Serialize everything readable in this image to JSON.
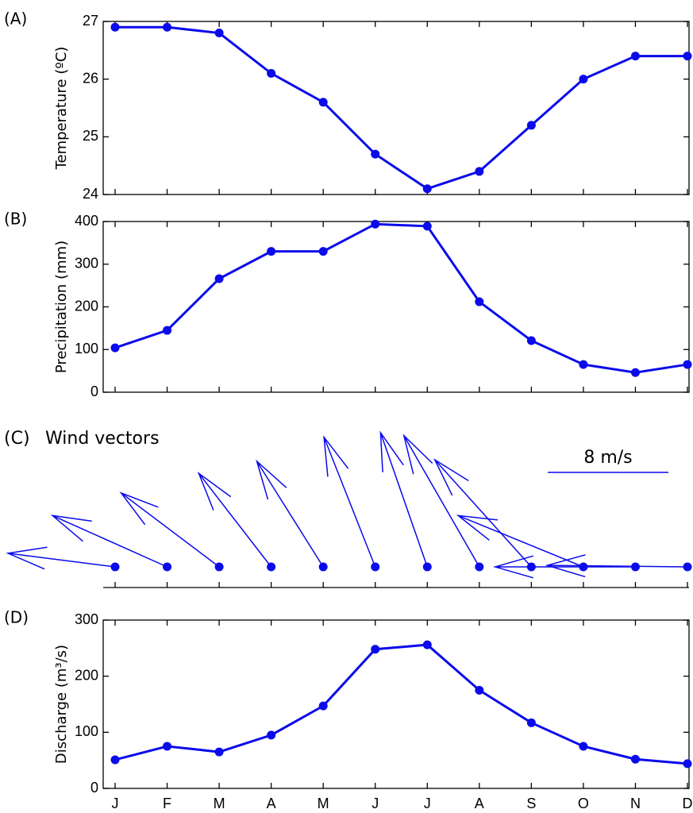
{
  "chart_data": [
    {
      "type": "line",
      "panel_label": "(A)",
      "y_label": "Temperature (ºC)",
      "color": "#0a0aeb",
      "values": [
        26.9,
        26.9,
        26.8,
        26.1,
        25.6,
        24.7,
        24.1,
        24.4,
        25.2,
        26.0,
        26.4,
        26.4
      ],
      "ylim": [
        24,
        27
      ],
      "yticks": [
        24,
        25,
        26,
        27
      ]
    },
    {
      "type": "line",
      "panel_label": "(B)",
      "y_label": "Precipitation (mm)",
      "color": "#0a0aeb",
      "values": [
        104,
        145,
        266,
        330,
        330,
        394,
        389,
        212,
        121,
        65,
        46,
        65
      ],
      "ylim": [
        0,
        400
      ],
      "yticks": [
        0,
        100,
        200,
        300,
        400
      ]
    },
    {
      "type": "quiver",
      "panel_label": "(C)",
      "title": "Wind vectors",
      "color": "#0a0aeb",
      "u": [
        -7.1,
        -7.6,
        -6.5,
        -4.8,
        -4.4,
        -3.4,
        -3.1,
        -5.0,
        -6.4,
        -8.3,
        -9.3,
        -9.3
      ],
      "v": [
        0.9,
        3.4,
        4.9,
        6.2,
        7.0,
        8.6,
        8.9,
        8.7,
        7.1,
        3.4,
        0.0,
        0.1
      ],
      "scale": {
        "value": 8,
        "label": "8 m/s"
      }
    },
    {
      "type": "line",
      "panel_label": "(D)",
      "y_label": "Discharge (m³/s)",
      "color": "#0a0aeb",
      "categories": [
        "J",
        "F",
        "M",
        "A",
        "M",
        "J",
        "J",
        "A",
        "S",
        "O",
        "N",
        "D"
      ],
      "values": [
        51,
        75,
        65,
        95,
        147,
        248,
        256,
        175,
        117,
        75,
        52,
        44
      ],
      "ylim": [
        0,
        300
      ],
      "yticks": [
        0,
        100,
        200,
        300
      ]
    }
  ]
}
